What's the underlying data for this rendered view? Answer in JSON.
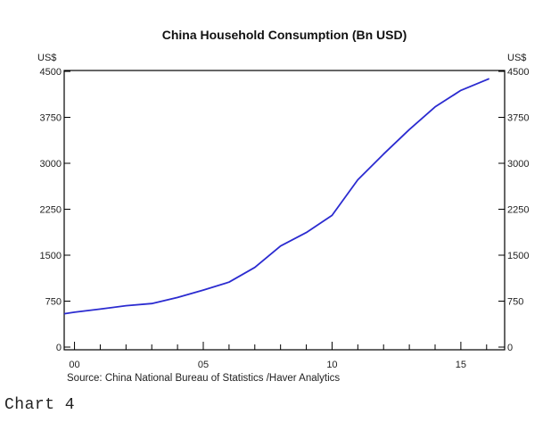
{
  "caption": "Chart 4",
  "chart_data": {
    "type": "line",
    "title": "China Household Consumption (Bn USD)",
    "y_unit_left": "US$",
    "y_unit_right": "US$",
    "source": "Source:  China National Bureau of Statistics /Haver Analytics",
    "ylim": [
      0,
      4500
    ],
    "xlim": [
      1999.6,
      2016.7
    ],
    "y_ticks": [
      0,
      750,
      1500,
      2250,
      3000,
      3750,
      4500
    ],
    "x_tick_labels": [
      {
        "year": 2000,
        "label": "00"
      },
      {
        "year": 2005,
        "label": "05"
      },
      {
        "year": 2010,
        "label": "10"
      },
      {
        "year": 2015,
        "label": "15"
      }
    ],
    "grid": false,
    "line_color": "#2b2bd0",
    "x": [
      1999.6,
      2000,
      2001,
      2002,
      2003,
      2004,
      2005,
      2006,
      2007,
      2008,
      2009,
      2010,
      2011,
      2012,
      2013,
      2014,
      2015,
      2016.1
    ],
    "values": [
      545,
      570,
      620,
      675,
      710,
      810,
      930,
      1060,
      1300,
      1650,
      1870,
      2150,
      2730,
      3150,
      3550,
      3920,
      4190,
      4380
    ]
  }
}
